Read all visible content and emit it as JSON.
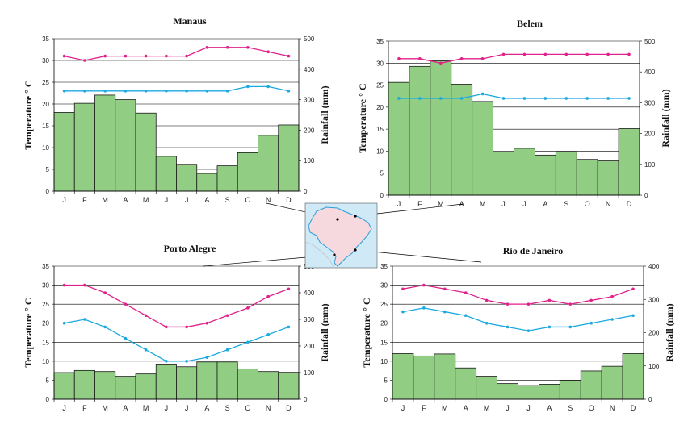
{
  "colors": {
    "bar_fill": "#92cd84",
    "bar_stroke": "#1a1a1a",
    "max_temp_line": "#e0218a",
    "min_temp_line": "#1ba9e0",
    "gridline": "#000000",
    "map_water": "#cfe9f6",
    "map_land": "#f6d8df",
    "map_border": "#2a9fd6"
  },
  "inset_map": {
    "icon": "brazil-map-icon",
    "description_label": ""
  },
  "chart_data": [
    {
      "id": "manaus",
      "type": "bar",
      "title": "Manaus",
      "ylabel": "Temperature ° C",
      "y2label": "Rainfall (mm)",
      "categories": [
        "J",
        "F",
        "M",
        "A",
        "M",
        "J",
        "J",
        "A",
        "S",
        "O",
        "N",
        "D"
      ],
      "ylim": [
        0,
        35
      ],
      "yticks": [
        0,
        5,
        10,
        15,
        20,
        25,
        30,
        35
      ],
      "y2lim": [
        0,
        500
      ],
      "y2ticks": [
        0,
        100,
        200,
        300,
        400,
        500
      ],
      "rainfall": [
        258,
        288,
        315,
        300,
        256,
        114,
        88,
        58,
        83,
        126,
        183,
        217
      ],
      "max_temp": [
        31,
        30,
        31,
        31,
        31,
        31,
        31,
        33,
        33,
        33,
        32,
        31
      ],
      "min_temp": [
        23,
        23,
        23,
        23,
        23,
        23,
        23,
        23,
        23,
        24,
        24,
        23
      ]
    },
    {
      "id": "belem",
      "type": "bar",
      "title": "Belem",
      "ylabel": "Temperature ° C",
      "y2label": "Rainfall (mm)",
      "categories": [
        "J",
        "F",
        "M",
        "A",
        "M",
        "J",
        "J",
        "A",
        "S",
        "O",
        "N",
        "D"
      ],
      "ylim": [
        0,
        35
      ],
      "yticks": [
        0,
        5,
        10,
        15,
        20,
        25,
        30,
        35
      ],
      "y2lim": [
        0,
        500
      ],
      "y2ticks": [
        0,
        100,
        200,
        300,
        400,
        500
      ],
      "rainfall": [
        366,
        418,
        436,
        360,
        304,
        140,
        152,
        130,
        141,
        116,
        111,
        216
      ],
      "max_temp": [
        31,
        31,
        30,
        31,
        31,
        32,
        32,
        32,
        32,
        32,
        32,
        32
      ],
      "min_temp": [
        22,
        22,
        22,
        22,
        23,
        22,
        22,
        22,
        22,
        22,
        22,
        22
      ]
    },
    {
      "id": "porto_alegre",
      "type": "bar",
      "title": "Porto Alegre",
      "ylabel": "Temperature ° C",
      "y2label": "Rainfall (mm)",
      "categories": [
        "J",
        "F",
        "M",
        "A",
        "M",
        "J",
        "J",
        "A",
        "S",
        "O",
        "N",
        "D"
      ],
      "ylim": [
        0,
        35
      ],
      "yticks": [
        0,
        5,
        10,
        15,
        20,
        25,
        30,
        35
      ],
      "y2lim": [
        0,
        500
      ],
      "y2ticks": [
        0,
        100,
        200,
        300,
        400,
        500
      ],
      "rainfall": [
        100,
        108,
        104,
        86,
        95,
        132,
        122,
        140,
        140,
        114,
        104,
        101
      ],
      "max_temp": [
        30,
        30,
        28,
        25,
        22,
        19,
        19,
        20,
        22,
        24,
        27,
        29
      ],
      "min_temp": [
        20,
        21,
        19,
        16,
        13,
        10,
        10,
        11,
        13,
        15,
        17,
        19
      ]
    },
    {
      "id": "rio_de_janeiro",
      "type": "bar",
      "title": "Rio de Janeiro",
      "ylabel": "Temperature ° C",
      "y2label": "Rainfall (mm)",
      "categories": [
        "J",
        "F",
        "M",
        "A",
        "M",
        "J",
        "J",
        "A",
        "S",
        "O",
        "N",
        "D"
      ],
      "ylim": [
        0,
        35
      ],
      "yticks": [
        0,
        5,
        10,
        15,
        20,
        25,
        30,
        35
      ],
      "y2lim": [
        0,
        400
      ],
      "y2ticks": [
        0,
        100,
        200,
        300,
        400
      ],
      "rainfall": [
        137,
        130,
        136,
        94,
        69,
        47,
        41,
        45,
        56,
        85,
        99,
        137
      ],
      "max_temp": [
        29,
        30,
        29,
        28,
        26,
        25,
        25,
        26,
        25,
        26,
        27,
        29
      ],
      "min_temp": [
        23,
        24,
        23,
        22,
        20,
        19,
        18,
        19,
        19,
        20,
        21,
        22
      ]
    }
  ]
}
